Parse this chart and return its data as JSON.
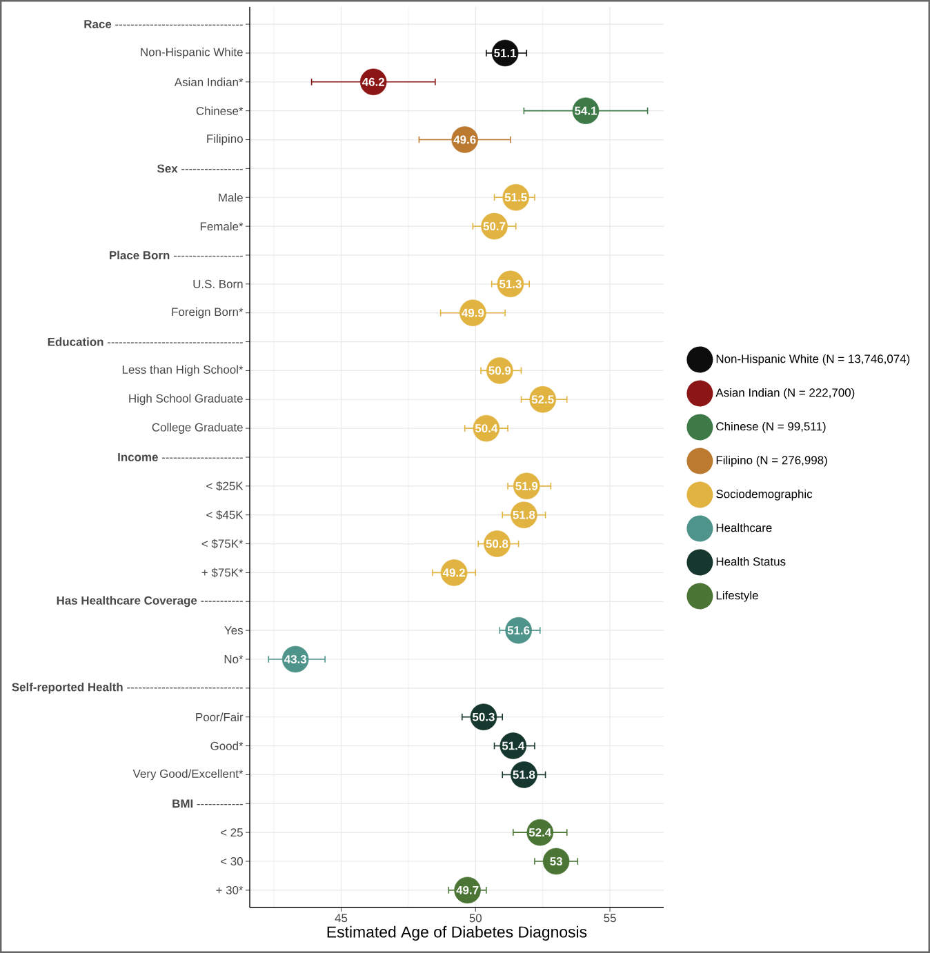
{
  "chart_data": {
    "type": "scatter",
    "orientation": "horizontal",
    "xlabel": "Estimated Age of Diabetes Diagnosis",
    "categories": [
      "**Race** ---------------------------------",
      "Non-Hispanic White",
      "Asian Indian*",
      "Chinese*",
      "Filipino",
      "**Sex** ----------------",
      "Male",
      "Female*",
      "**Place Born** ------------------",
      "U.S. Born",
      "Foreign Born*",
      "**Education** -----------------------------------",
      "Less than High School*",
      "High School Graduate",
      "College Graduate",
      "**Income** ---------------------",
      "< $25K",
      "< $45K",
      "< $75K*",
      "+ $75K*",
      "**Has Healthcare Coverage** -----------",
      "Yes",
      "No*",
      "**Self-reported Health** ------------------------------",
      "Poor/Fair",
      "Good*",
      "Very Good/Excellent*",
      "**BMI** ------------",
      "< 25",
      "< 30",
      "+ 30*"
    ],
    "xlim": [
      41.6,
      57.0
    ],
    "xticks": [
      {
        "value": 42.5,
        "label": null
      },
      45,
      {
        "value": 47.5,
        "label": null
      },
      50,
      {
        "value": 52.5,
        "label": null
      },
      55
    ],
    "grid": true,
    "legend": "right",
    "marker": "circle",
    "data_labels": true,
    "series": [
      {
        "name": "Non-Hispanic White (N = 13,746,074)",
        "color": "#0d0d0d",
        "values": [
          null,
          51.1,
          null,
          null,
          null,
          null,
          null,
          null,
          null,
          null,
          null,
          null,
          null,
          null,
          null,
          null,
          null,
          null,
          null,
          null,
          null,
          null,
          null,
          null,
          null,
          null,
          null,
          null,
          null,
          null,
          null
        ],
        "errors": [
          null,
          [
            50.4,
            51.9
          ],
          null,
          null,
          null,
          null,
          null,
          null,
          null,
          null,
          null,
          null,
          null,
          null,
          null,
          null,
          null,
          null,
          null,
          null,
          null,
          null,
          null,
          null,
          null,
          null,
          null,
          null,
          null,
          null,
          null
        ]
      },
      {
        "name": "Asian Indian (N = 222,700)",
        "color": "#8c1616",
        "values": [
          null,
          null,
          46.2,
          null,
          null,
          null,
          null,
          null,
          null,
          null,
          null,
          null,
          null,
          null,
          null,
          null,
          null,
          null,
          null,
          null,
          null,
          null,
          null,
          null,
          null,
          null,
          null,
          null,
          null,
          null,
          null
        ],
        "errors": [
          null,
          null,
          [
            43.9,
            48.5
          ],
          null,
          null,
          null,
          null,
          null,
          null,
          null,
          null,
          null,
          null,
          null,
          null,
          null,
          null,
          null,
          null,
          null,
          null,
          null,
          null,
          null,
          null,
          null,
          null,
          null,
          null,
          null,
          null
        ]
      },
      {
        "name": "Chinese (N = 99,511)",
        "color": "#3e7a47",
        "values": [
          null,
          null,
          null,
          54.1,
          null,
          null,
          null,
          null,
          null,
          null,
          null,
          null,
          null,
          null,
          null,
          null,
          null,
          null,
          null,
          null,
          null,
          null,
          null,
          null,
          null,
          null,
          null,
          null,
          null,
          null,
          null
        ],
        "errors": [
          null,
          null,
          null,
          [
            51.8,
            56.4
          ],
          null,
          null,
          null,
          null,
          null,
          null,
          null,
          null,
          null,
          null,
          null,
          null,
          null,
          null,
          null,
          null,
          null,
          null,
          null,
          null,
          null,
          null,
          null,
          null,
          null,
          null,
          null
        ]
      },
      {
        "name": "Filipino (N = 276,998)",
        "color": "#bb7a30",
        "values": [
          null,
          null,
          null,
          null,
          49.6,
          null,
          null,
          null,
          null,
          null,
          null,
          null,
          null,
          null,
          null,
          null,
          null,
          null,
          null,
          null,
          null,
          null,
          null,
          null,
          null,
          null,
          null,
          null,
          null,
          null,
          null
        ],
        "errors": [
          null,
          null,
          null,
          null,
          [
            47.9,
            51.3
          ],
          null,
          null,
          null,
          null,
          null,
          null,
          null,
          null,
          null,
          null,
          null,
          null,
          null,
          null,
          null,
          null,
          null,
          null,
          null,
          null,
          null,
          null,
          null,
          null,
          null,
          null
        ]
      },
      {
        "name": "Sociodemographic",
        "color": "#e1b340",
        "values": [
          null,
          null,
          null,
          null,
          null,
          null,
          51.5,
          50.7,
          null,
          51.3,
          49.9,
          null,
          50.9,
          52.5,
          50.4,
          null,
          51.9,
          51.8,
          50.8,
          49.2,
          null,
          null,
          null,
          null,
          null,
          null,
          null,
          null,
          null,
          null,
          null
        ],
        "errors": [
          null,
          null,
          null,
          null,
          null,
          null,
          [
            50.7,
            52.2
          ],
          [
            49.9,
            51.5
          ],
          null,
          [
            50.6,
            52.0
          ],
          [
            48.7,
            51.1
          ],
          null,
          [
            50.2,
            51.7
          ],
          [
            51.7,
            53.4
          ],
          [
            49.6,
            51.2
          ],
          null,
          [
            51.2,
            52.8
          ],
          [
            51.0,
            52.6
          ],
          [
            50.1,
            51.6
          ],
          [
            48.4,
            50.0
          ],
          null,
          null,
          null,
          null,
          null,
          null,
          null,
          null,
          null,
          null,
          null
        ]
      },
      {
        "name": "Healthcare",
        "color": "#4f948b",
        "values": [
          null,
          null,
          null,
          null,
          null,
          null,
          null,
          null,
          null,
          null,
          null,
          null,
          null,
          null,
          null,
          null,
          null,
          null,
          null,
          null,
          null,
          51.6,
          43.3,
          null,
          null,
          null,
          null,
          null,
          null,
          null,
          null
        ],
        "errors": [
          null,
          null,
          null,
          null,
          null,
          null,
          null,
          null,
          null,
          null,
          null,
          null,
          null,
          null,
          null,
          null,
          null,
          null,
          null,
          null,
          null,
          [
            50.9,
            52.4
          ],
          [
            42.3,
            44.4
          ],
          null,
          null,
          null,
          null,
          null,
          null,
          null,
          null
        ]
      },
      {
        "name": "Health Status",
        "color": "#16372e",
        "values": [
          null,
          null,
          null,
          null,
          null,
          null,
          null,
          null,
          null,
          null,
          null,
          null,
          null,
          null,
          null,
          null,
          null,
          null,
          null,
          null,
          null,
          null,
          null,
          null,
          50.3,
          51.4,
          51.8,
          null,
          null,
          null,
          null
        ],
        "errors": [
          null,
          null,
          null,
          null,
          null,
          null,
          null,
          null,
          null,
          null,
          null,
          null,
          null,
          null,
          null,
          null,
          null,
          null,
          null,
          null,
          null,
          null,
          null,
          null,
          [
            49.5,
            51.0
          ],
          [
            50.7,
            52.2
          ],
          [
            51.0,
            52.6
          ],
          null,
          null,
          null,
          null
        ]
      },
      {
        "name": "Lifestyle",
        "color": "#4b7535",
        "values": [
          null,
          null,
          null,
          null,
          null,
          null,
          null,
          null,
          null,
          null,
          null,
          null,
          null,
          null,
          null,
          null,
          null,
          null,
          null,
          null,
          null,
          null,
          null,
          null,
          null,
          null,
          null,
          null,
          52.4,
          53,
          49.7
        ],
        "errors": [
          null,
          null,
          null,
          null,
          null,
          null,
          null,
          null,
          null,
          null,
          null,
          null,
          null,
          null,
          null,
          null,
          null,
          null,
          null,
          null,
          null,
          null,
          null,
          null,
          null,
          null,
          null,
          null,
          [
            51.4,
            53.4
          ],
          [
            52.2,
            53.8
          ],
          [
            49.0,
            50.4
          ]
        ]
      }
    ]
  }
}
